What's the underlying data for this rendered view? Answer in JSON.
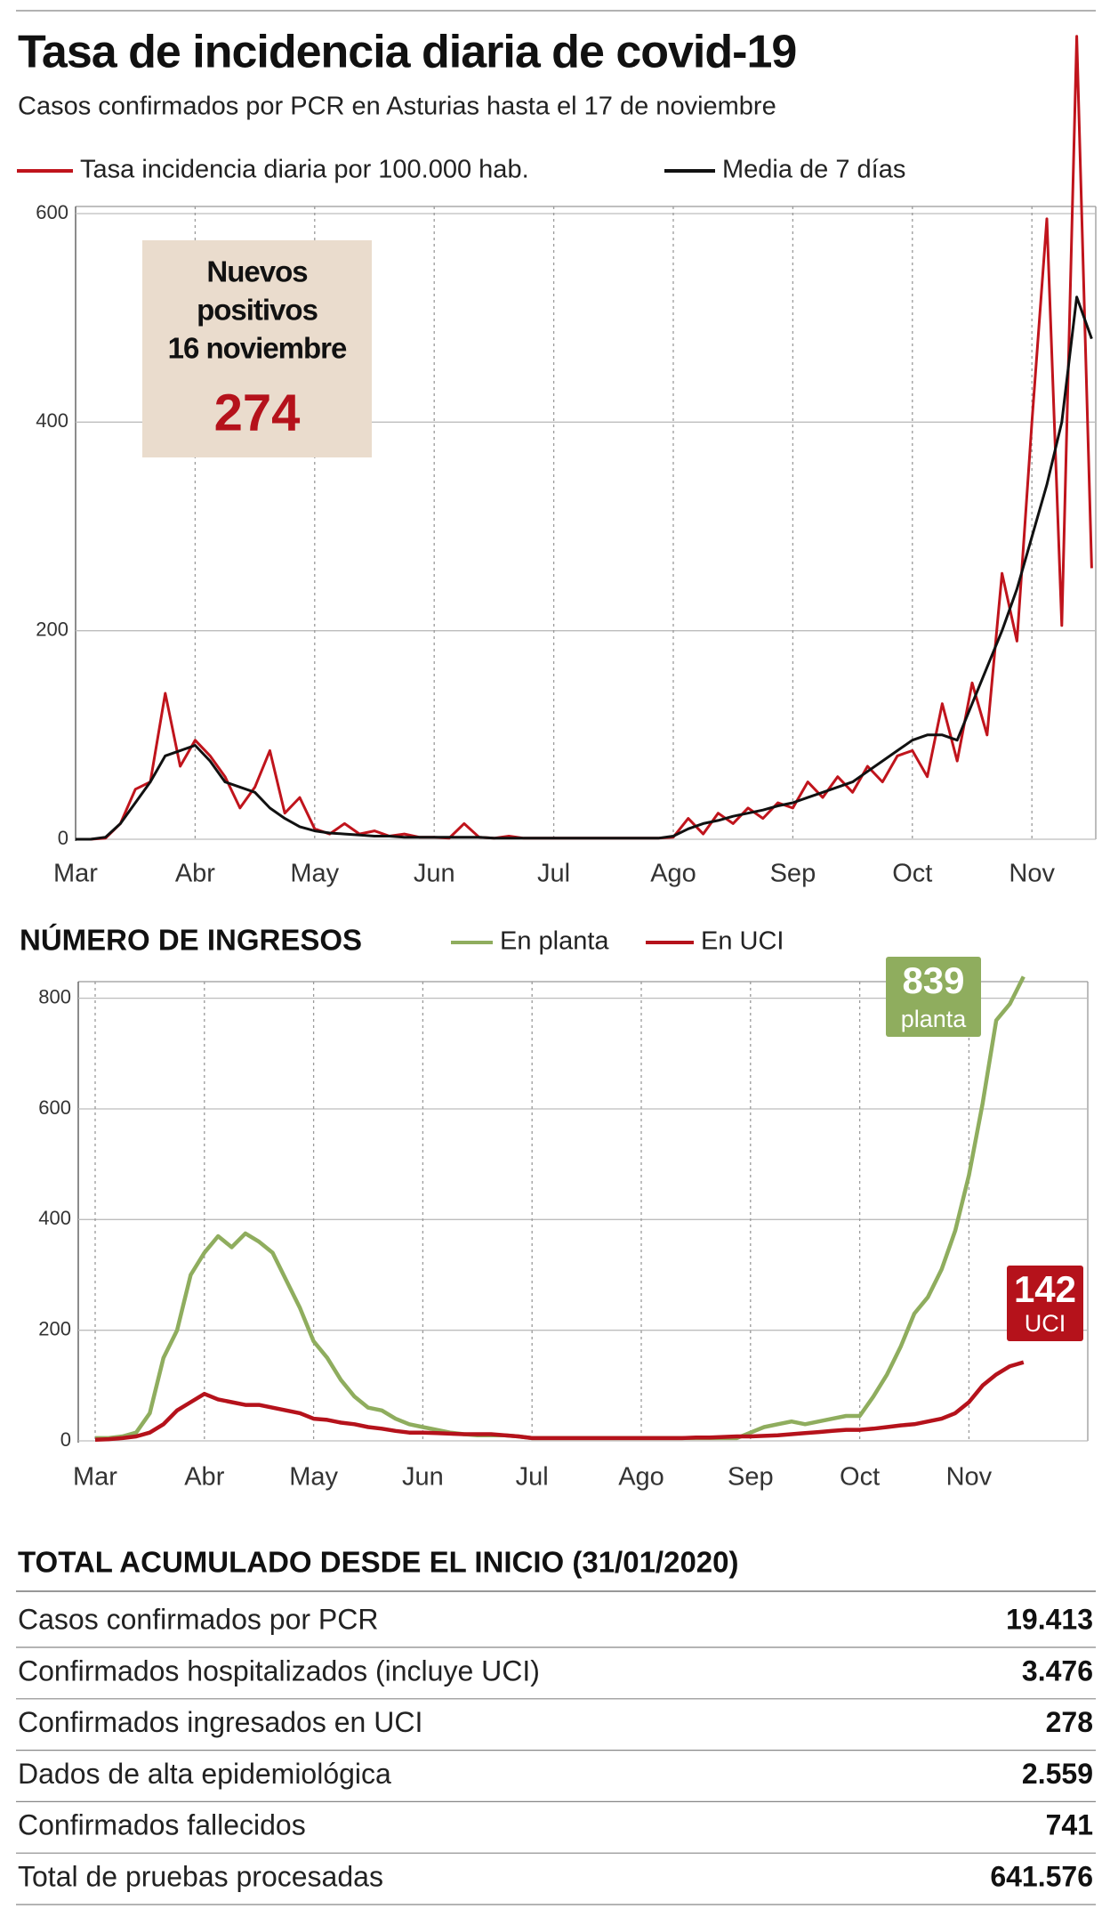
{
  "chart_data": [
    {
      "type": "line",
      "title": "Tasa de incidencia diaria de covid-19",
      "subtitle": "Casos confirmados por PCR en Asturias hasta el 17 de noviembre",
      "annotation": {
        "lines": [
          "Nuevos",
          "positivos",
          "16 noviembre"
        ],
        "value": 274
      },
      "categories": [
        "Mar",
        null,
        null,
        null,
        null,
        null,
        null,
        null,
        "Abr",
        null,
        null,
        null,
        null,
        null,
        null,
        null,
        "May",
        null,
        null,
        null,
        null,
        null,
        null,
        null,
        "Jun",
        null,
        null,
        null,
        null,
        null,
        null,
        null,
        "Jul",
        null,
        null,
        null,
        null,
        null,
        null,
        null,
        "Ago",
        null,
        null,
        null,
        null,
        null,
        null,
        null,
        "Sep",
        null,
        null,
        null,
        null,
        null,
        null,
        null,
        "Oct",
        null,
        null,
        null,
        null,
        null,
        null,
        null,
        "Nov",
        null,
        null,
        null,
        null
      ],
      "series": [
        {
          "name": "Tasa incidencia diaria por 100.000 hab.",
          "color": "#c0141c",
          "values": [
            0,
            0,
            1,
            15,
            48,
            55,
            140,
            70,
            95,
            80,
            60,
            30,
            50,
            85,
            25,
            40,
            10,
            5,
            15,
            5,
            8,
            3,
            5,
            2,
            2,
            1,
            15,
            2,
            1,
            3,
            1,
            1,
            1,
            1,
            1,
            1,
            1,
            1,
            1,
            1,
            2,
            20,
            5,
            25,
            15,
            30,
            20,
            35,
            30,
            55,
            40,
            60,
            45,
            70,
            55,
            80,
            85,
            60,
            130,
            75,
            150,
            100,
            255,
            190,
            400,
            595,
            205,
            770,
            260
          ]
        },
        {
          "name": "Media de 7 días",
          "color": "#111111",
          "values": [
            0,
            0,
            2,
            15,
            35,
            55,
            80,
            85,
            90,
            75,
            55,
            50,
            45,
            30,
            20,
            12,
            8,
            6,
            5,
            4,
            3,
            3,
            2,
            2,
            2,
            2,
            2,
            2,
            1,
            1,
            1,
            1,
            1,
            1,
            1,
            1,
            1,
            1,
            1,
            1,
            3,
            10,
            15,
            18,
            22,
            25,
            28,
            32,
            35,
            40,
            45,
            50,
            55,
            65,
            75,
            85,
            95,
            100,
            100,
            95,
            130,
            165,
            200,
            240,
            290,
            340,
            400,
            520,
            480
          ]
        }
      ],
      "ylim": [
        0,
        600
      ],
      "yticks": [
        0,
        200,
        400,
        600
      ],
      "grid": true
    },
    {
      "type": "line",
      "title": "NÚMERO DE INGRESOS",
      "categories": [
        "Mar",
        null,
        null,
        null,
        null,
        null,
        null,
        null,
        "Abr",
        null,
        null,
        null,
        null,
        null,
        null,
        null,
        "May",
        null,
        null,
        null,
        null,
        null,
        null,
        null,
        "Jun",
        null,
        null,
        null,
        null,
        null,
        null,
        null,
        "Jul",
        null,
        null,
        null,
        null,
        null,
        null,
        null,
        "Ago",
        null,
        null,
        null,
        null,
        null,
        null,
        null,
        "Sep",
        null,
        null,
        null,
        null,
        null,
        null,
        null,
        "Oct",
        null,
        null,
        null,
        null,
        null,
        null,
        null,
        "Nov",
        null,
        null,
        null,
        null
      ],
      "series": [
        {
          "name": "En planta",
          "color": "#8fad5e",
          "end_label": "planta",
          "values": [
            5,
            5,
            8,
            15,
            50,
            150,
            200,
            300,
            340,
            370,
            350,
            375,
            360,
            340,
            290,
            240,
            180,
            150,
            110,
            80,
            60,
            55,
            40,
            30,
            25,
            20,
            15,
            12,
            10,
            10,
            10,
            8,
            5,
            5,
            5,
            5,
            5,
            5,
            5,
            5,
            5,
            5,
            5,
            5,
            5,
            5,
            5,
            5,
            15,
            25,
            30,
            35,
            30,
            35,
            40,
            45,
            45,
            80,
            120,
            170,
            230,
            260,
            310,
            380,
            480,
            610,
            760,
            790,
            839
          ]
        },
        {
          "name": "En UCI",
          "color": "#b5121b",
          "end_label": "UCI",
          "values": [
            2,
            3,
            5,
            8,
            15,
            30,
            55,
            70,
            85,
            75,
            70,
            65,
            65,
            60,
            55,
            50,
            40,
            38,
            33,
            30,
            25,
            22,
            18,
            15,
            15,
            14,
            13,
            12,
            12,
            12,
            10,
            8,
            5,
            5,
            5,
            5,
            5,
            5,
            5,
            5,
            5,
            5,
            5,
            5,
            6,
            6,
            7,
            8,
            8,
            9,
            10,
            12,
            14,
            16,
            18,
            20,
            20,
            22,
            25,
            28,
            30,
            35,
            40,
            50,
            70,
            100,
            120,
            135,
            142
          ]
        }
      ],
      "ylim": [
        0,
        830
      ],
      "yticks": [
        0,
        200,
        400,
        600,
        800
      ],
      "grid": true
    }
  ],
  "table": {
    "title": "TOTAL ACUMULADO DESDE EL INICIO (31/01/2020)",
    "rows": [
      [
        "Casos confirmados por PCR",
        "19.413"
      ],
      [
        "Confirmados hospitalizados (incluye UCI)",
        "3.476"
      ],
      [
        "Confirmados ingresados en UCI",
        "278"
      ],
      [
        "Dados de alta epidemiológica",
        "2.559"
      ],
      [
        "Confirmados fallecidos",
        "741"
      ],
      [
        "Total de pruebas procesadas",
        "641.576"
      ]
    ]
  }
}
